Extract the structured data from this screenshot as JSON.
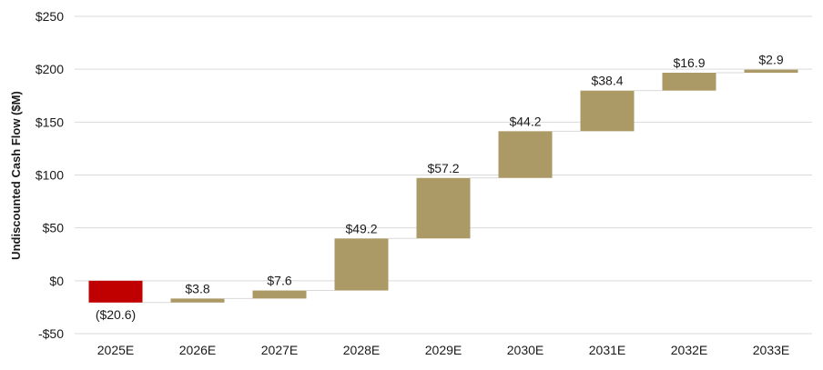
{
  "chart_data": {
    "type": "bar",
    "subtype": "waterfall",
    "ylabel": "Undiscounted Cash Flow ($M)",
    "xlabel": "",
    "categories": [
      "2025E",
      "2026E",
      "2027E",
      "2028E",
      "2029E",
      "2030E",
      "2031E",
      "2032E",
      "2033E"
    ],
    "values": [
      -20.6,
      3.8,
      7.6,
      49.2,
      57.2,
      44.2,
      38.4,
      16.9,
      2.9
    ],
    "data_labels": [
      "($20.6)",
      "$3.8",
      "$7.6",
      "$49.2",
      "$57.2",
      "$44.2",
      "$38.4",
      "$16.9",
      "$2.9"
    ],
    "ylim": [
      -50,
      250
    ],
    "yticks": [
      -50,
      0,
      50,
      100,
      150,
      200,
      250
    ],
    "ytick_labels": [
      "-$50",
      "$0",
      "$50",
      "$100",
      "$150",
      "$200",
      "$250"
    ],
    "grid": true,
    "colors": {
      "negative": "#c00000",
      "positive": "#ac9a66",
      "grid": "#d9d9d9",
      "connector": "#d9d9d9"
    }
  }
}
